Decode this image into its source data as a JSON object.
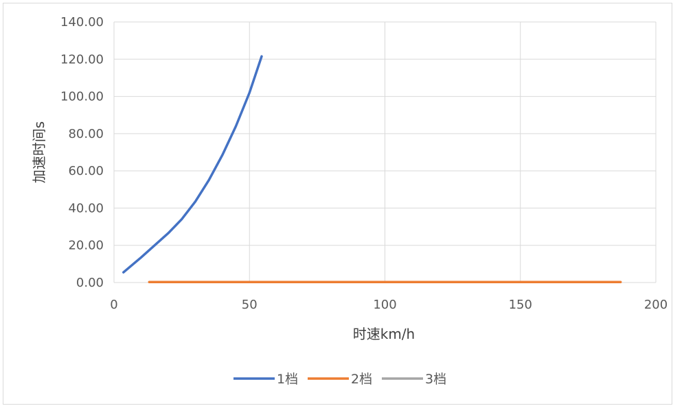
{
  "chart_data": {
    "type": "scatter",
    "title": "",
    "xlabel": "时速km/h",
    "ylabel": "加速时间s",
    "xlim": [
      0,
      200
    ],
    "ylim": [
      0,
      140
    ],
    "x_ticks": [
      0,
      50,
      100,
      150,
      200
    ],
    "y_ticks": [
      0,
      20,
      40,
      60,
      80,
      100,
      120,
      140
    ],
    "x_tick_labels": [
      "0",
      "50",
      "100",
      "150",
      "200"
    ],
    "y_tick_labels": [
      "0.00",
      "20.00",
      "40.00",
      "60.00",
      "80.00",
      "100.00",
      "120.00",
      "140.00"
    ],
    "grid": true,
    "legend_position": "bottom",
    "series": [
      {
        "name": "1档",
        "color": "#4472c4",
        "x": [
          3.5,
          10,
          15,
          20,
          25,
          30,
          35,
          40,
          45,
          50,
          54.5
        ],
        "y": [
          5.5,
          13.5,
          20,
          26.5,
          34,
          43.5,
          55,
          68.5,
          84,
          102,
          121.5
        ]
      },
      {
        "name": "2档",
        "color": "#ed7d31",
        "x": [
          13,
          187
        ],
        "y": [
          0.3,
          0.3
        ]
      },
      {
        "name": "3档",
        "color": "#a5a5a5",
        "x": [],
        "y": []
      }
    ]
  }
}
